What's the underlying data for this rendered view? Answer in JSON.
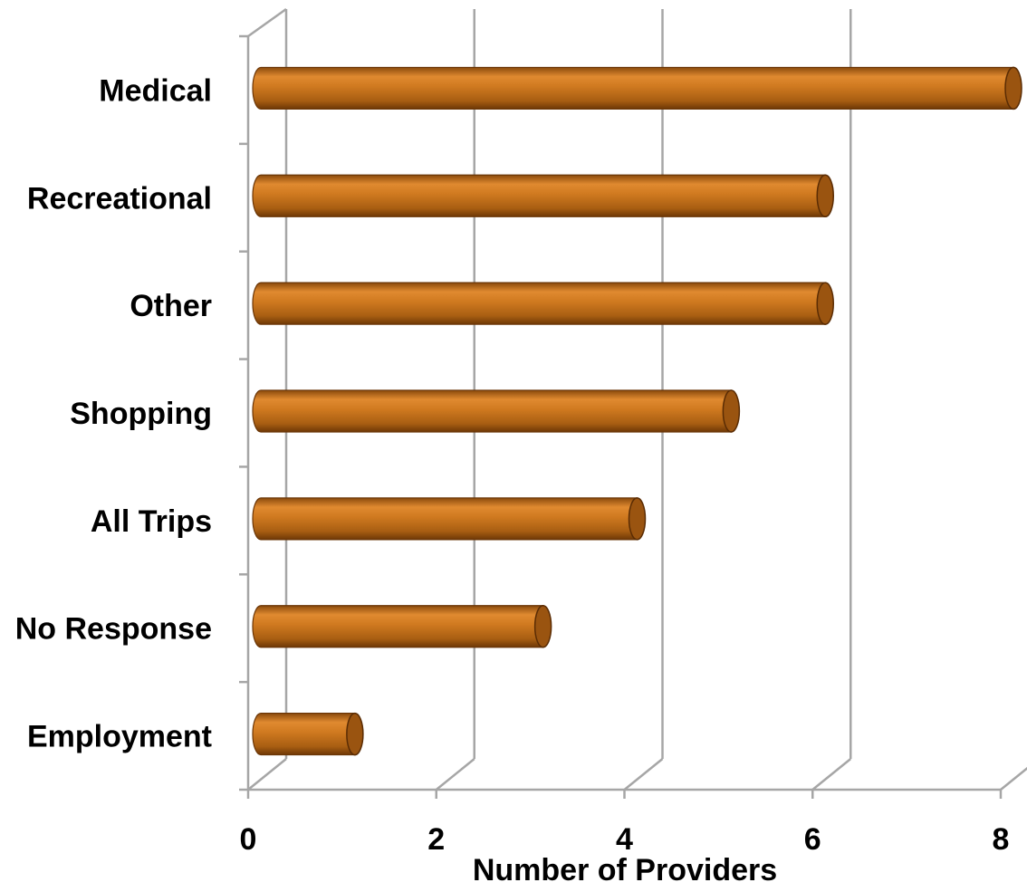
{
  "chart_data": {
    "type": "bar",
    "orientation": "horizontal",
    "style": "3d-cylinder",
    "title": "",
    "xlabel": "Number of Providers",
    "ylabel": "",
    "categories": [
      "Medical",
      "Recreational",
      "Other",
      "Shopping",
      "All Trips",
      "No Response",
      "Employment"
    ],
    "values": [
      8,
      6,
      6,
      5,
      4,
      3,
      1
    ],
    "xlim": [
      0,
      8
    ],
    "xticks": [
      "0",
      "2",
      "4",
      "6",
      "8"
    ],
    "grid": true,
    "legend": "none",
    "colors": {
      "bar_light": "#e58a2c",
      "bar_mid": "#c4701a",
      "bar_dark": "#7a3e08",
      "bar_cap": "#9a5410",
      "grid": "#a6a6a6"
    }
  }
}
